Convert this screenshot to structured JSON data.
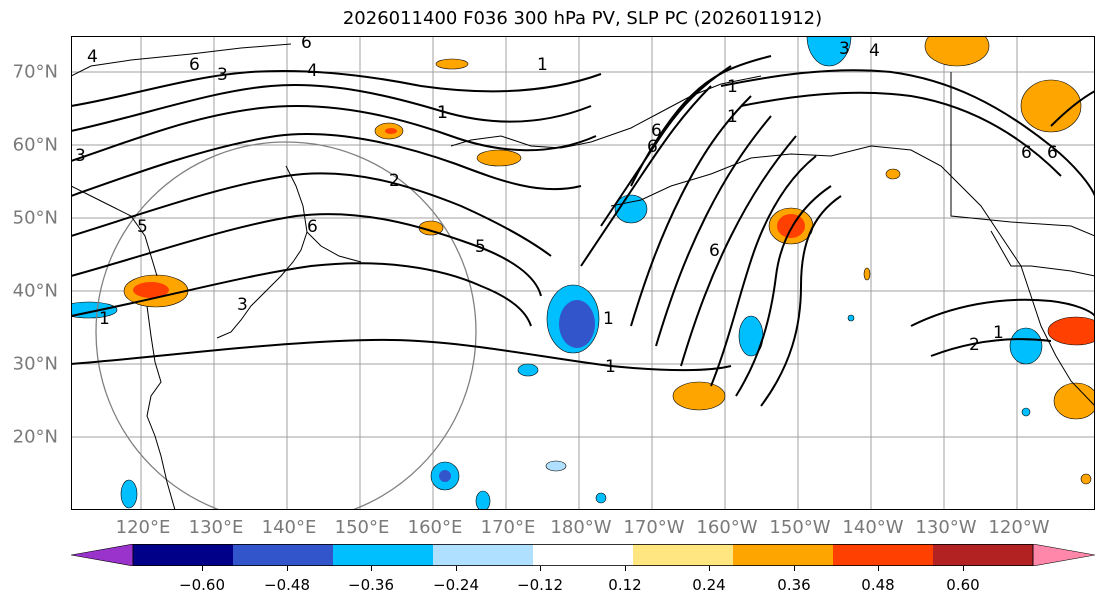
{
  "title": "2026011400 F036 300 hPa PV, SLP PC (2026011912)",
  "map": {
    "lat_labels": [
      "70°N",
      "60°N",
      "50°N",
      "40°N",
      "30°N",
      "20°N"
    ],
    "lon_labels": [
      "120°E",
      "130°E",
      "140°E",
      "150°E",
      "160°E",
      "170°E",
      "180°W",
      "170°W",
      "160°W",
      "150°W",
      "140°W",
      "130°W",
      "120°W"
    ],
    "contour_labels": [
      "6",
      "6",
      "4",
      "3",
      "4",
      "1",
      "1",
      "3",
      "4",
      "1",
      "2",
      "6",
      "5",
      "3",
      "1",
      "1",
      "1",
      "6",
      "6",
      "3",
      "6",
      "1",
      "2",
      "1",
      "1",
      "5",
      "6",
      "6"
    ],
    "colors": {
      "coast": "#000000",
      "contour": "#000000",
      "grid": "#a0a0a0",
      "circle": "#808080"
    }
  },
  "colorbar": {
    "colors": [
      "#9933cc",
      "#000088",
      "#3355cc",
      "#00bfff",
      "#b0e0ff",
      "#ffffff",
      "#ffe680",
      "#ffa500",
      "#ff4000",
      "#b22222",
      "#ff88aa"
    ],
    "ticks": [
      "−0.60",
      "−0.48",
      "−0.36",
      "−0.24",
      "−0.12",
      "0.12",
      "0.24",
      "0.36",
      "0.48",
      "0.60"
    ]
  }
}
